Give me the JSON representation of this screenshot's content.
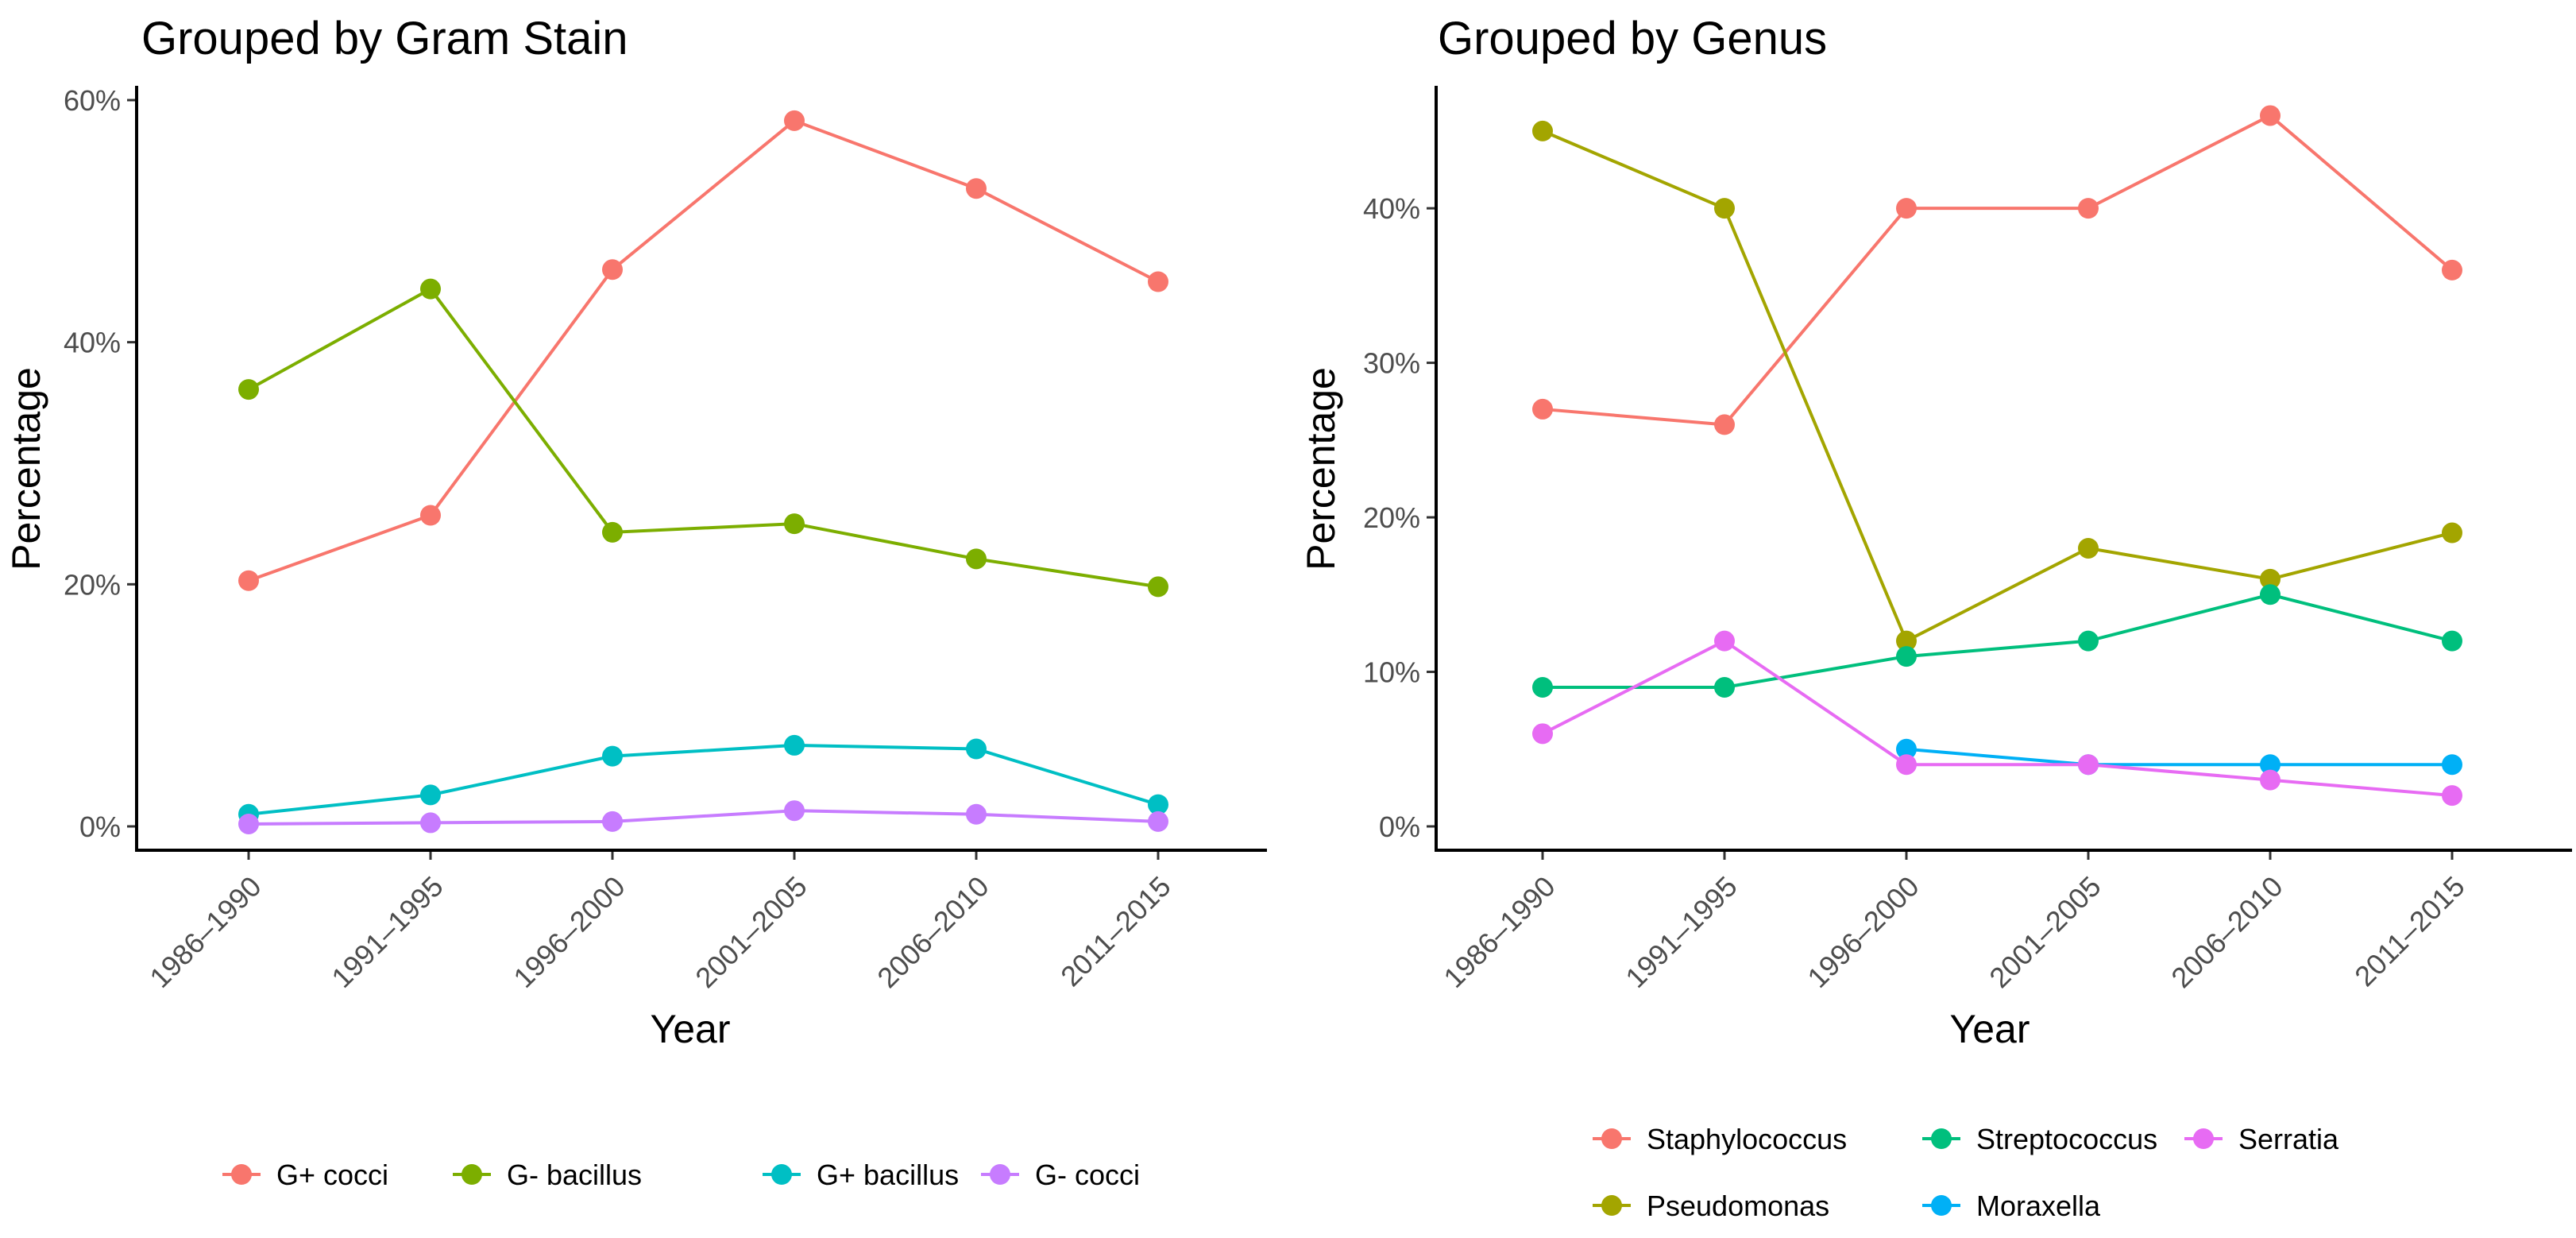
{
  "chart_data": [
    {
      "type": "line",
      "title": "Grouped by Gram Stain",
      "xlabel": "Year",
      "ylabel": "Percentage",
      "categories": [
        "1986–1990",
        "1991–1995",
        "1996–2000",
        "2001–2005",
        "2006–2010",
        "2011–2015"
      ],
      "ylim": [
        0,
        60
      ],
      "yticks": [
        0,
        20,
        40,
        60
      ],
      "ytick_labels": [
        "0%",
        "20%",
        "40%",
        "60%"
      ],
      "legend_position": "bottom",
      "series": [
        {
          "name": "G+ cocci",
          "color": "#F8766D",
          "values": [
            20.3,
            25.7,
            46.0,
            58.3,
            52.7,
            45.0
          ]
        },
        {
          "name": "G- bacillus",
          "color": "#7CAE00",
          "values": [
            36.1,
            44.4,
            24.3,
            25.0,
            22.1,
            19.8
          ]
        },
        {
          "name": "G+ bacillus",
          "color": "#00BFC4",
          "values": [
            1.0,
            2.6,
            5.8,
            6.7,
            6.4,
            1.8
          ]
        },
        {
          "name": "G- cocci",
          "color": "#C77CFF",
          "values": [
            0.2,
            0.3,
            0.4,
            1.3,
            1.0,
            0.4
          ]
        }
      ]
    },
    {
      "type": "line",
      "title": "Grouped by Genus",
      "xlabel": "Year",
      "ylabel": "Percentage",
      "categories": [
        "1986–1990",
        "1991–1995",
        "1996–2000",
        "2001–2005",
        "2006–2010",
        "2011–2015"
      ],
      "ylim": [
        0,
        47
      ],
      "yticks": [
        0,
        10,
        20,
        30,
        40
      ],
      "ytick_labels": [
        "0%",
        "10%",
        "20%",
        "30%",
        "40%"
      ],
      "legend_position": "bottom",
      "series": [
        {
          "name": "Staphylococcus",
          "color": "#F8766D",
          "values": [
            27,
            26,
            40,
            40,
            46,
            36
          ]
        },
        {
          "name": "Pseudomonas",
          "color": "#A3A500",
          "values": [
            45,
            40,
            12,
            18,
            16,
            19
          ]
        },
        {
          "name": "Streptococcus",
          "color": "#00BF7D",
          "values": [
            9,
            9,
            11,
            12,
            15,
            12
          ]
        },
        {
          "name": "Moraxella",
          "color": "#00B0F6",
          "values": [
            null,
            null,
            5,
            4,
            4,
            4
          ]
        },
        {
          "name": "Serratia",
          "color": "#E76BF3",
          "values": [
            6,
            12,
            4,
            4,
            3,
            2
          ]
        }
      ]
    }
  ]
}
